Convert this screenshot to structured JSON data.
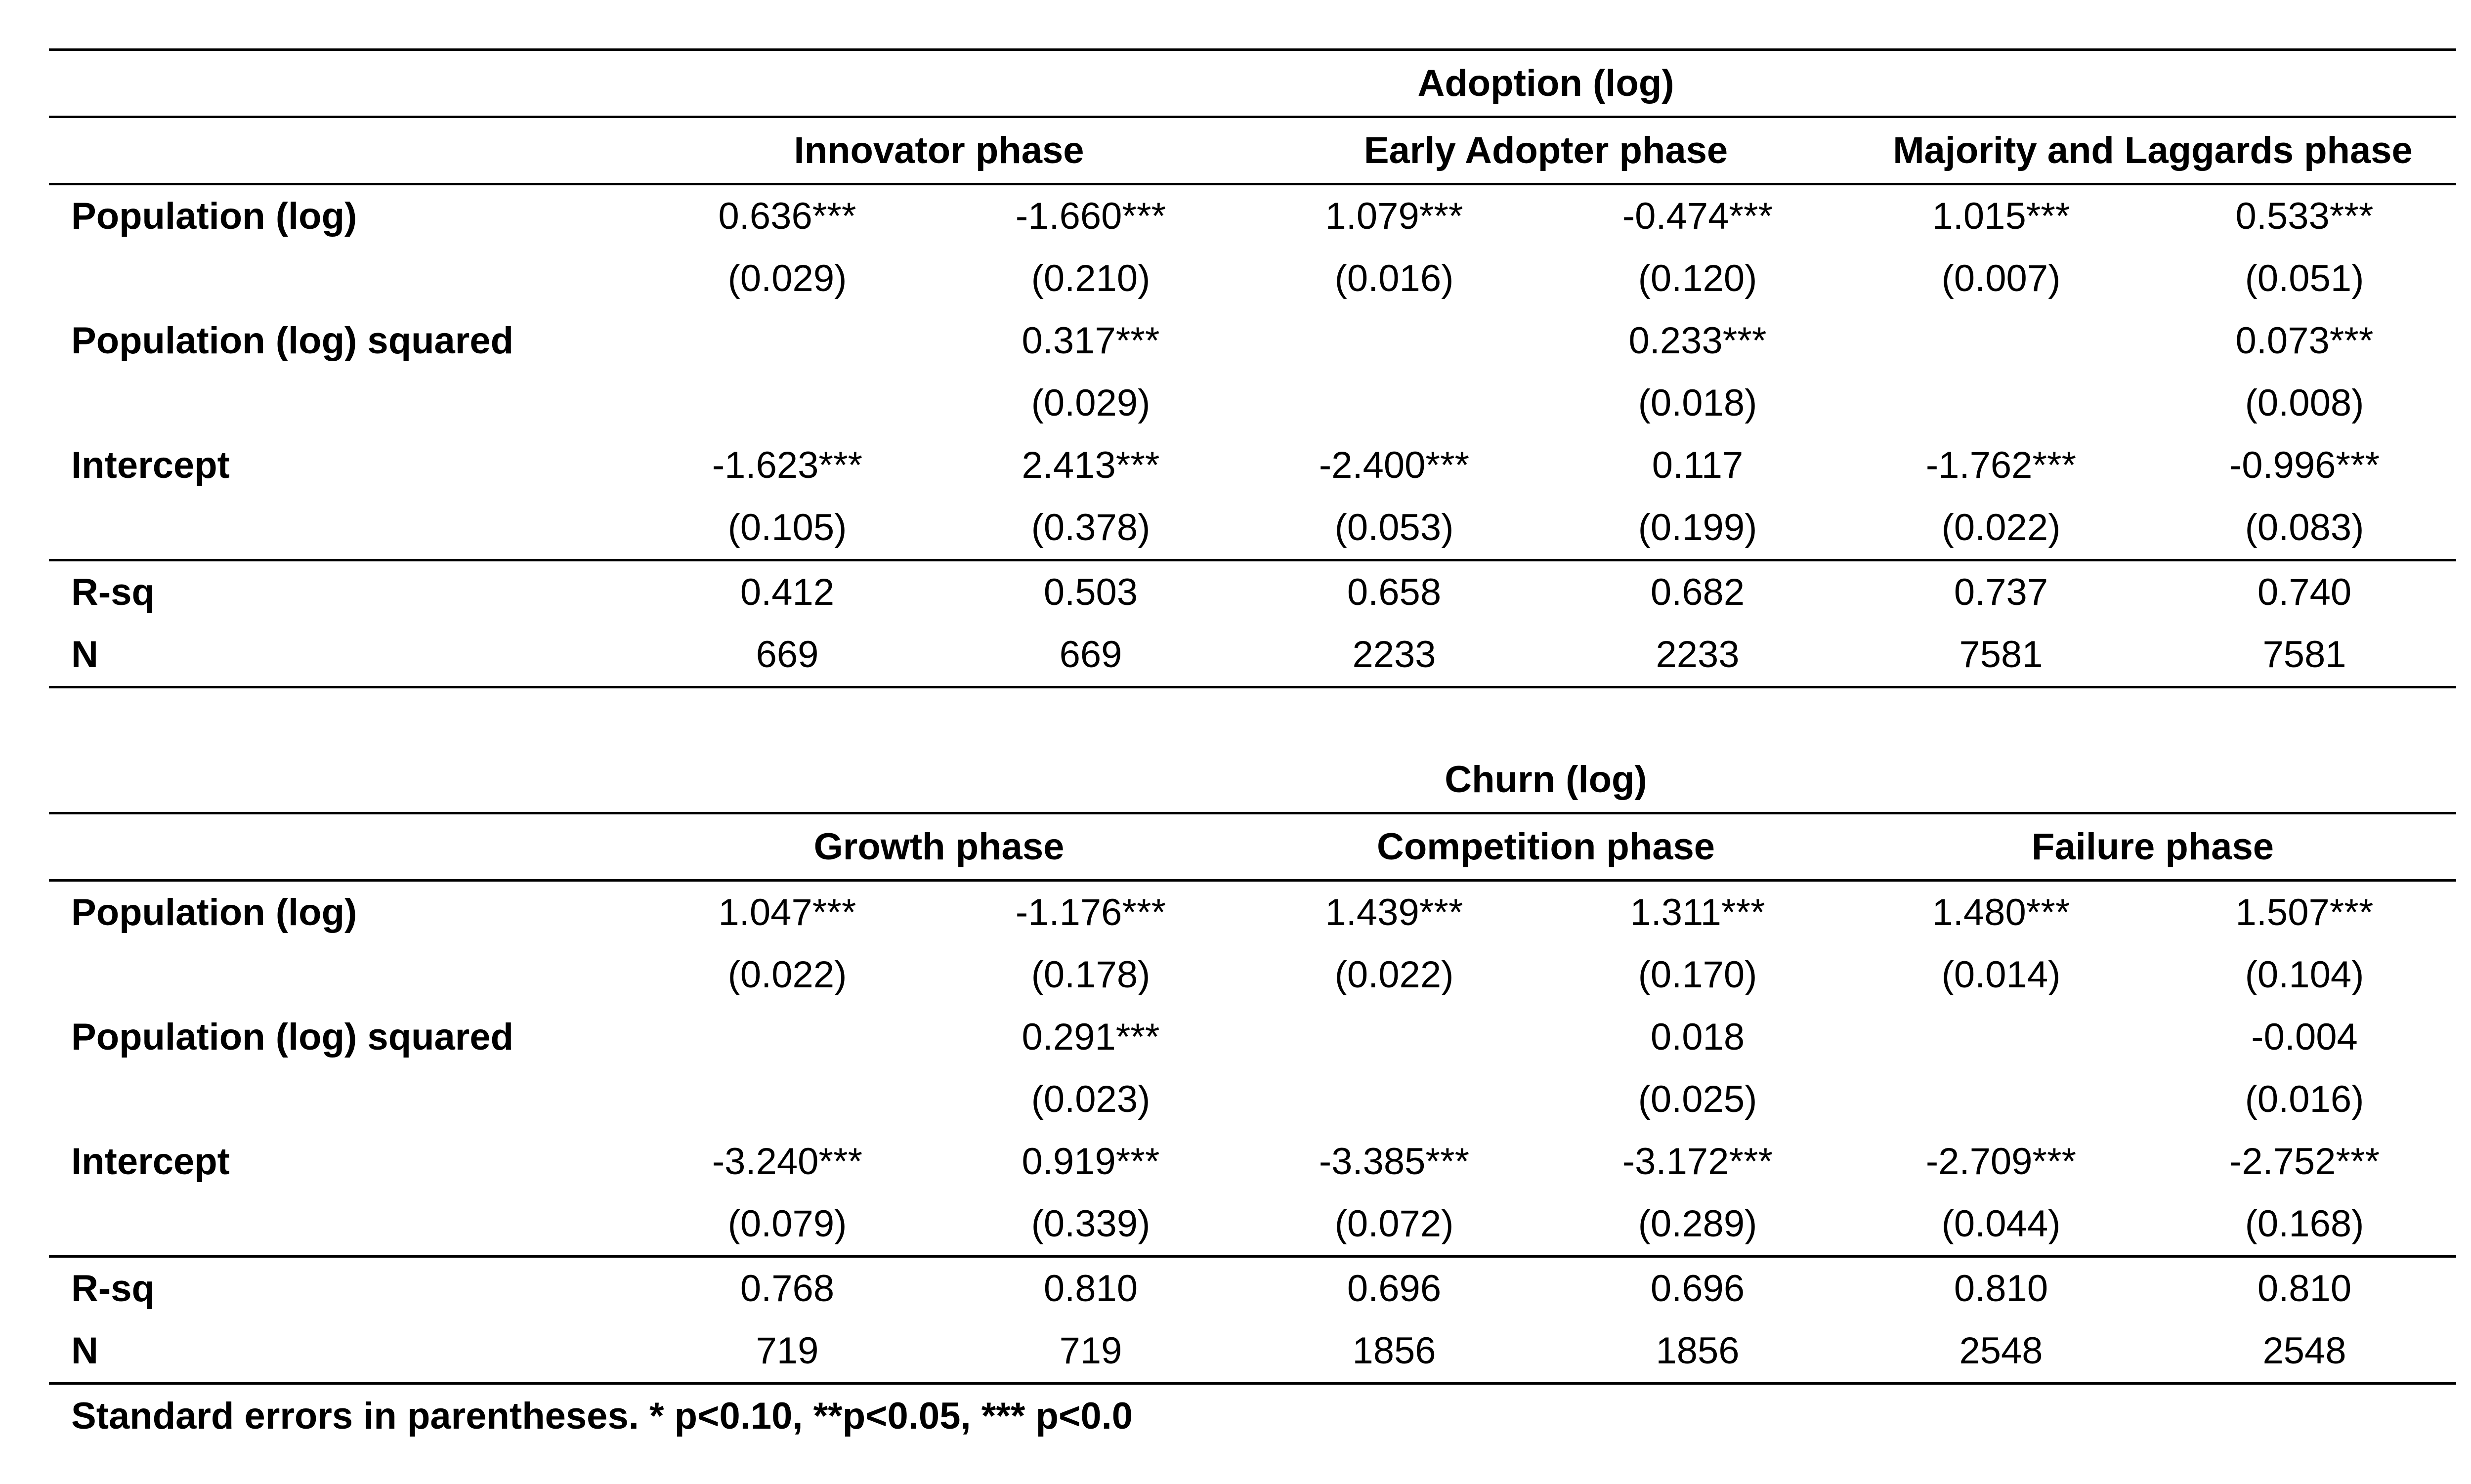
{
  "tables": [
    {
      "title": "Adoption (log)",
      "phases": [
        "Innovator phase",
        "Early Adopter phase",
        "Majority and Laggards phase"
      ],
      "rows": [
        {
          "label": "Population (log)",
          "cells": [
            "0.636***",
            "-1.660***",
            "1.079***",
            "-0.474***",
            "1.015***",
            "0.533***"
          ]
        },
        {
          "label": "",
          "cells": [
            "(0.029)",
            "(0.210)",
            "(0.016)",
            "(0.120)",
            "(0.007)",
            "(0.051)"
          ]
        },
        {
          "label": "Population (log) squared",
          "cells": [
            "",
            "0.317***",
            "",
            "0.233***",
            "",
            "0.073***"
          ]
        },
        {
          "label": "",
          "cells": [
            "",
            "(0.029)",
            "",
            "(0.018)",
            "",
            "(0.008)"
          ]
        },
        {
          "label": "Intercept",
          "cells": [
            "-1.623***",
            "2.413***",
            "-2.400***",
            "0.117",
            "-1.762***",
            "-0.996***"
          ]
        },
        {
          "label": "",
          "cells": [
            "(0.105)",
            "(0.378)",
            "(0.053)",
            "(0.199)",
            "(0.022)",
            "(0.083)"
          ]
        }
      ],
      "stats": [
        {
          "label": "R-sq",
          "cells": [
            "0.412",
            "0.503",
            "0.658",
            "0.682",
            "0.737",
            "0.740"
          ]
        },
        {
          "label": "N",
          "cells": [
            "669",
            "669",
            "2233",
            "2233",
            "7581",
            "7581"
          ]
        }
      ]
    },
    {
      "title": "Churn (log)",
      "phases": [
        "Growth phase",
        "Competition phase",
        "Failure phase"
      ],
      "rows": [
        {
          "label": "Population (log)",
          "cells": [
            "1.047***",
            "-1.176***",
            "1.439***",
            "1.311***",
            "1.480***",
            "1.507***"
          ]
        },
        {
          "label": "",
          "cells": [
            "(0.022)",
            "(0.178)",
            "(0.022)",
            "(0.170)",
            "(0.014)",
            "(0.104)"
          ]
        },
        {
          "label": "Population (log) squared",
          "cells": [
            "",
            "0.291***",
            "",
            "0.018",
            "",
            "-0.004"
          ]
        },
        {
          "label": "",
          "cells": [
            "",
            "(0.023)",
            "",
            "(0.025)",
            "",
            "(0.016)"
          ]
        },
        {
          "label": "Intercept",
          "cells": [
            "-3.240***",
            "0.919***",
            "-3.385***",
            "-3.172***",
            "-2.709***",
            "-2.752***"
          ]
        },
        {
          "label": "",
          "cells": [
            "(0.079)",
            "(0.339)",
            "(0.072)",
            "(0.289)",
            "(0.044)",
            "(0.168)"
          ]
        }
      ],
      "stats": [
        {
          "label": "R-sq",
          "cells": [
            "0.768",
            "0.810",
            "0.696",
            "0.696",
            "0.810",
            "0.810"
          ]
        },
        {
          "label": "N",
          "cells": [
            "719",
            "719",
            "1856",
            "1856",
            "2548",
            "2548"
          ]
        }
      ]
    }
  ],
  "footnote": "Standard errors in parentheses. * p<0.10, **p<0.05, *** p<0.0"
}
